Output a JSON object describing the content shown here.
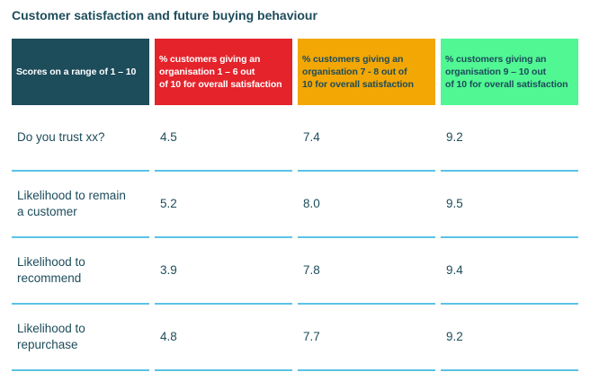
{
  "title": "Customer satisfaction and future buying behaviour",
  "colors": {
    "teal": "#1d4c5b",
    "red": "#e4232b",
    "orange": "#f2a705",
    "green": "#50f793",
    "underline": "#5bc2e7",
    "white": "#ffffff"
  },
  "table": {
    "header": {
      "scores": "Scores on a range of 1 – 10",
      "low": "% customers giving an\norganisation 1 – 6 out\nof 10 for overall satisfaction",
      "mid": "% customers giving an\norganisation 7 - 8 out of\n10 for overall satisfaction",
      "high": "% customers giving an\norganisation 9 – 10 out\nof 10 for overall satisfaction"
    },
    "rows": [
      {
        "label": "Do you trust xx?",
        "values": [
          "4.5",
          "7.4",
          "9.2"
        ]
      },
      {
        "label": "Likelihood to remain\na customer",
        "values": [
          "5.2",
          "8.0",
          "9.5"
        ]
      },
      {
        "label": "Likelihood to\nrecommend",
        "values": [
          "3.9",
          "7.8",
          "9.4"
        ]
      },
      {
        "label": "Likelihood to\nrepurchase",
        "values": [
          "4.8",
          "7.7",
          "9.2"
        ]
      }
    ]
  },
  "chart_data": {
    "type": "table",
    "title": "Customer satisfaction and future buying behaviour",
    "row_header": "Scores on a range of 1 – 10",
    "categories": [
      "Do you trust xx?",
      "Likelihood to remain a customer",
      "Likelihood to recommend",
      "Likelihood to repurchase"
    ],
    "series": [
      {
        "name": "% customers giving an organisation 1 – 6 out of 10 for overall satisfaction",
        "color": "#e4232b",
        "values": [
          4.5,
          5.2,
          3.9,
          4.8
        ]
      },
      {
        "name": "% customers giving an organisation 7 - 8 out of 10 for overall satisfaction",
        "color": "#f2a705",
        "values": [
          7.4,
          8.0,
          7.8,
          7.7
        ]
      },
      {
        "name": "% customers giving an organisation 9 – 10 out of 10 for overall satisfaction",
        "color": "#50f793",
        "values": [
          9.2,
          9.5,
          9.4,
          9.2
        ]
      }
    ],
    "layout": {
      "grid": "off",
      "underline_color": "#5bc2e7",
      "value_range": [
        1,
        10
      ]
    }
  }
}
